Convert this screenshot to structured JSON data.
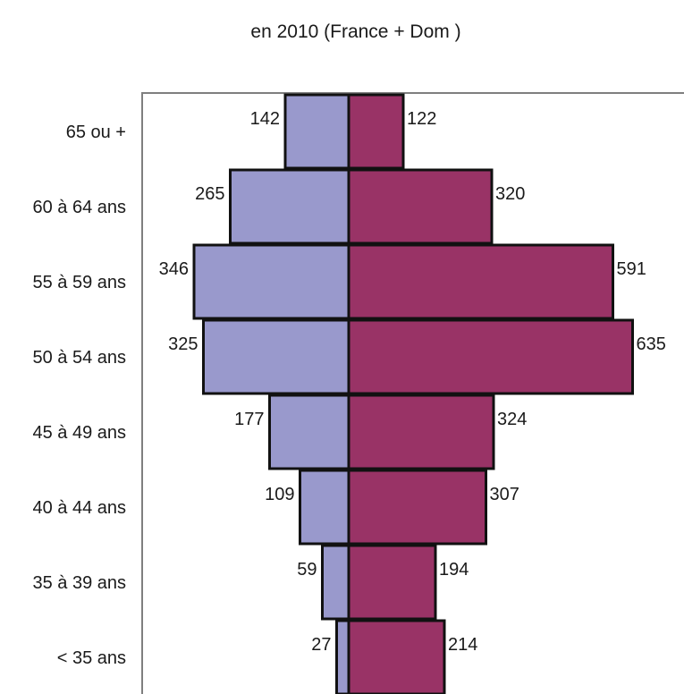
{
  "chart_data": {
    "type": "bar",
    "orientation": "horizontal-pyramid",
    "title": "en 2010 (France + Dom )",
    "categories": [
      "65 ou +",
      "60 à 64 ans",
      "55 à 59 ans",
      "50 à 54 ans",
      "45 à 49 ans",
      "40 à 44 ans",
      "35 à 39 ans",
      "< 35 ans"
    ],
    "series": [
      {
        "side": "left",
        "color": "#9999cc",
        "values": [
          142,
          265,
          346,
          325,
          177,
          109,
          59,
          27
        ]
      },
      {
        "side": "right",
        "color": "#993366",
        "values": [
          122,
          320,
          591,
          635,
          324,
          307,
          194,
          214
        ]
      }
    ],
    "xlim": [
      -350,
      650
    ],
    "grid": false,
    "legend": "none"
  }
}
